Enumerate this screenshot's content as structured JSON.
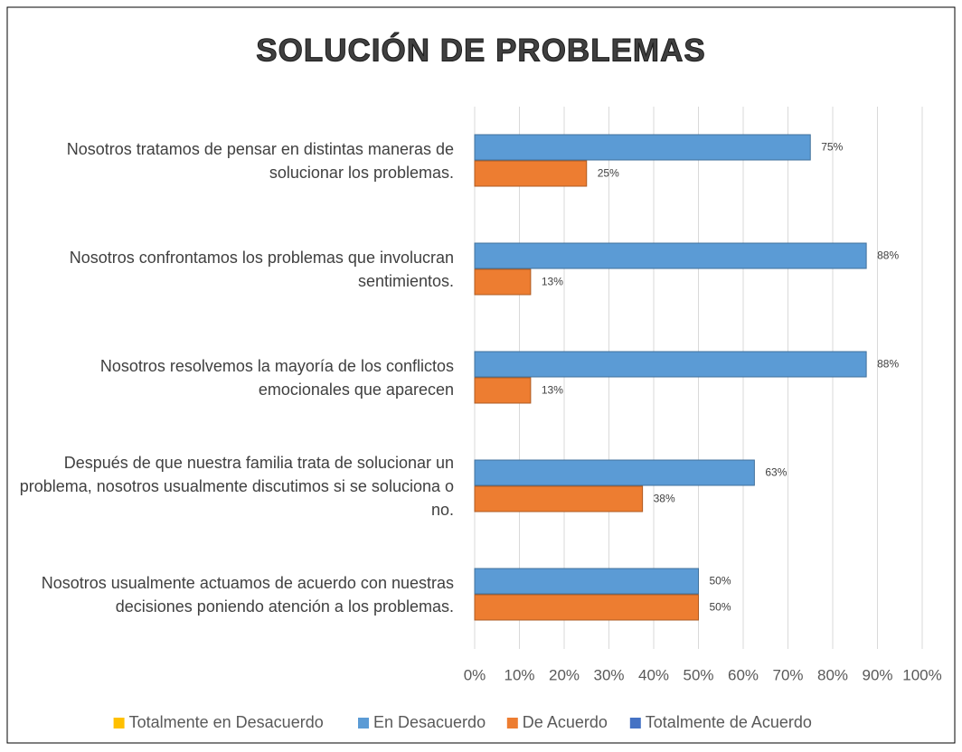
{
  "chart_data": {
    "type": "bar",
    "orientation": "horizontal",
    "title": "SOLUCIÓN DE PROBLEMAS",
    "categories": [
      "Nosotros tratamos de pensar en distintas maneras de solucionar los problemas.",
      "Nosotros confrontamos los problemas que involucran sentimientos.",
      "Nosotros resolvemos la mayoría de los conflictos emocionales que aparecen",
      "Después de que nuestra familia trata de solucionar un problema, nosotros usualmente discutimos si se soluciona o no.",
      "Nosotros usualmente actuamos de acuerdo con nuestras decisiones poniendo atención a los problemas."
    ],
    "series": [
      {
        "name": "Totalmente en Desacuerdo",
        "color": "#ffc000",
        "values": [
          null,
          null,
          null,
          null,
          null
        ]
      },
      {
        "name": "En Desacuerdo",
        "color": "#5b9bd5",
        "values": [
          75,
          87.5,
          87.5,
          62.5,
          50
        ],
        "value_labels": [
          "75%",
          "88%",
          "88%",
          "63%",
          "50%"
        ]
      },
      {
        "name": "De Acuerdo",
        "color": "#ed7d31",
        "values": [
          25,
          12.5,
          12.5,
          37.5,
          50
        ],
        "value_labels": [
          "25%",
          "13%",
          "13%",
          "38%",
          "50%"
        ]
      },
      {
        "name": "Totalmente de Acuerdo",
        "color": "#4472c4",
        "values": [
          null,
          null,
          null,
          null,
          null
        ]
      }
    ],
    "xlim": [
      0,
      100
    ],
    "xticks": [
      {
        "value": 0,
        "label": "0%"
      },
      {
        "value": 10,
        "label": "10%"
      },
      {
        "value": 20,
        "label": "20%"
      },
      {
        "value": 30,
        "label": "30%"
      },
      {
        "value": 40,
        "label": "40%"
      },
      {
        "value": 50,
        "label": "50%"
      },
      {
        "value": 60,
        "label": "60%"
      },
      {
        "value": 70,
        "label": "70%"
      },
      {
        "value": 80,
        "label": "80%"
      },
      {
        "value": 90,
        "label": "90%"
      },
      {
        "value": 100,
        "label": "100%"
      }
    ],
    "grid": true,
    "legend": "bottom"
  }
}
